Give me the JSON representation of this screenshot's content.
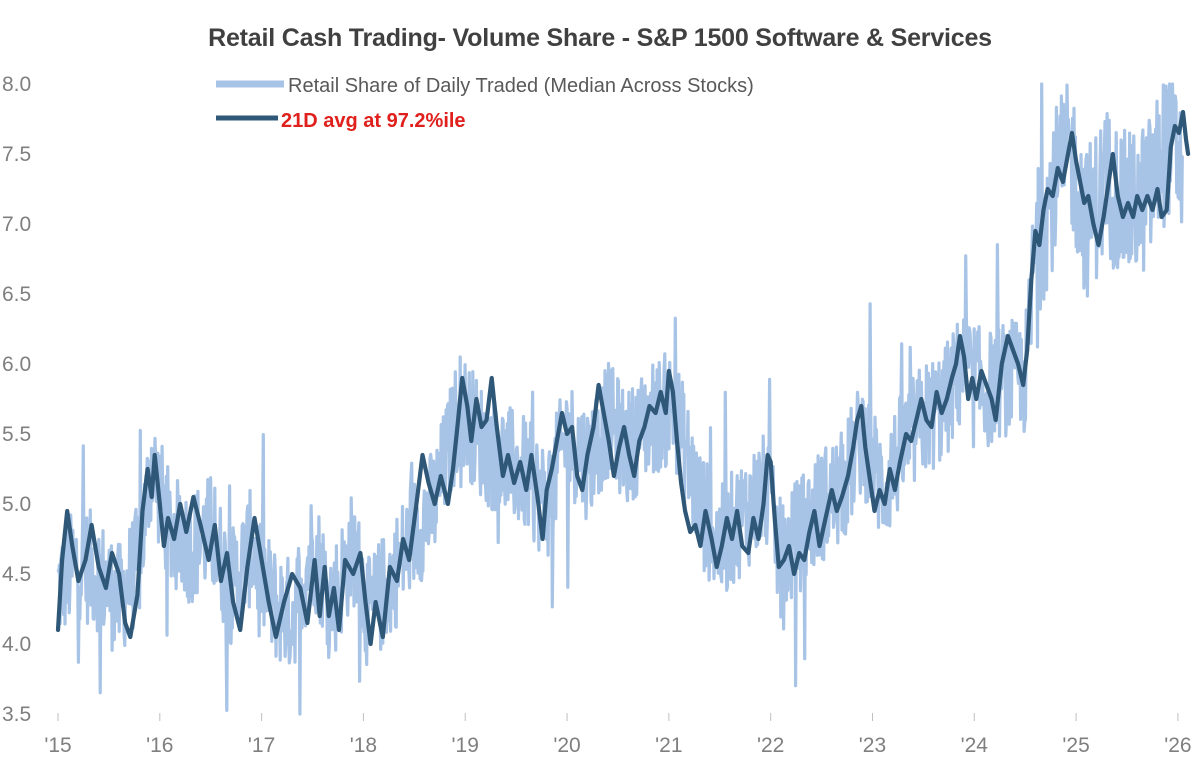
{
  "colors": {
    "daily": "#a7c3e6",
    "avg": "#2f5878",
    "annotation": "#e0201c",
    "axis_text": "#7f7f7f",
    "title": "#404040"
  },
  "chart_data": {
    "type": "line",
    "title": "Retail Cash Trading- Volume Share - S&P 1500 Software & Services",
    "xlabel": "",
    "ylabel": "",
    "x_range": [
      2015.0,
      2026.05
    ],
    "ylim": [
      3.5,
      8.0
    ],
    "y_ticks": [
      "3.5",
      "4.0",
      "4.5",
      "5.0",
      "5.5",
      "6.0",
      "6.5",
      "7.0",
      "7.5",
      "8.0"
    ],
    "x_ticks": [
      {
        "x": 2015,
        "label": "'15"
      },
      {
        "x": 2016,
        "label": "'16"
      },
      {
        "x": 2017,
        "label": "'17"
      },
      {
        "x": 2018,
        "label": "'18"
      },
      {
        "x": 2019,
        "label": "'19"
      },
      {
        "x": 2020,
        "label": "'20"
      },
      {
        "x": 2021,
        "label": "'21"
      },
      {
        "x": 2022,
        "label": "'22"
      },
      {
        "x": 2023,
        "label": "'23"
      },
      {
        "x": 2024,
        "label": "'24"
      },
      {
        "x": 2025,
        "label": "'25"
      },
      {
        "x": 2026,
        "label": "'26"
      }
    ],
    "grid": false,
    "legend_position": "top-left",
    "series": [
      {
        "name": "Retail Share of Daily Traded (Median Across Stocks)",
        "kind": "daily",
        "points": [
          [
            2015.0,
            4.4
          ],
          [
            2015.2,
            4.6
          ],
          [
            2015.4,
            4.5
          ],
          [
            2015.6,
            4.3
          ],
          [
            2015.8,
            4.6
          ],
          [
            2015.92,
            5.3
          ],
          [
            2016.1,
            4.8
          ],
          [
            2016.3,
            4.7
          ],
          [
            2016.5,
            4.8
          ],
          [
            2016.7,
            4.4
          ],
          [
            2016.9,
            4.7
          ],
          [
            2017.1,
            4.3
          ],
          [
            2017.3,
            4.2
          ],
          [
            2017.5,
            4.7
          ],
          [
            2017.7,
            4.3
          ],
          [
            2017.9,
            4.7
          ],
          [
            2018.05,
            4.2
          ],
          [
            2018.3,
            4.5
          ],
          [
            2018.5,
            4.8
          ],
          [
            2018.7,
            5.0
          ],
          [
            2018.95,
            5.7
          ],
          [
            2019.2,
            5.4
          ],
          [
            2019.4,
            5.3
          ],
          [
            2019.6,
            5.2
          ],
          [
            2019.8,
            5.0
          ],
          [
            2020.0,
            5.5
          ],
          [
            2020.2,
            5.3
          ],
          [
            2020.4,
            5.6
          ],
          [
            2020.6,
            5.4
          ],
          [
            2020.8,
            5.6
          ],
          [
            2021.05,
            5.7
          ],
          [
            2021.3,
            5.0
          ],
          [
            2021.5,
            4.7
          ],
          [
            2021.7,
            4.9
          ],
          [
            2021.95,
            5.1
          ],
          [
            2022.1,
            4.6
          ],
          [
            2022.3,
            4.8
          ],
          [
            2022.5,
            5.0
          ],
          [
            2022.7,
            5.1
          ],
          [
            2022.9,
            5.5
          ],
          [
            2023.1,
            5.1
          ],
          [
            2023.3,
            5.4
          ],
          [
            2023.5,
            5.6
          ],
          [
            2023.7,
            5.7
          ],
          [
            2023.9,
            6.0
          ],
          [
            2024.1,
            5.8
          ],
          [
            2024.3,
            5.9
          ],
          [
            2024.5,
            5.9
          ],
          [
            2024.6,
            6.8
          ],
          [
            2024.8,
            7.3
          ],
          [
            2024.95,
            7.5
          ],
          [
            2025.1,
            7.0
          ],
          [
            2025.3,
            7.3
          ],
          [
            2025.5,
            7.1
          ],
          [
            2025.7,
            7.2
          ],
          [
            2025.9,
            7.6
          ],
          [
            2026.05,
            7.4
          ]
        ]
      },
      {
        "name": "21D avg at 97.2%ile",
        "kind": "avg",
        "points": [
          [
            2015.0,
            4.1
          ],
          [
            2015.04,
            4.6
          ],
          [
            2015.09,
            4.95
          ],
          [
            2015.14,
            4.7
          ],
          [
            2015.2,
            4.45
          ],
          [
            2015.27,
            4.6
          ],
          [
            2015.33,
            4.85
          ],
          [
            2015.4,
            4.55
          ],
          [
            2015.47,
            4.4
          ],
          [
            2015.53,
            4.65
          ],
          [
            2015.6,
            4.5
          ],
          [
            2015.66,
            4.15
          ],
          [
            2015.71,
            4.05
          ],
          [
            2015.78,
            4.35
          ],
          [
            2015.83,
            4.95
          ],
          [
            2015.88,
            5.25
          ],
          [
            2015.92,
            5.05
          ],
          [
            2015.95,
            5.35
          ],
          [
            2016.0,
            5.0
          ],
          [
            2016.04,
            4.7
          ],
          [
            2016.08,
            4.9
          ],
          [
            2016.14,
            4.75
          ],
          [
            2016.2,
            5.0
          ],
          [
            2016.26,
            4.8
          ],
          [
            2016.33,
            5.05
          ],
          [
            2016.4,
            4.85
          ],
          [
            2016.48,
            4.6
          ],
          [
            2016.54,
            4.85
          ],
          [
            2016.6,
            4.45
          ],
          [
            2016.66,
            4.65
          ],
          [
            2016.72,
            4.3
          ],
          [
            2016.79,
            4.1
          ],
          [
            2016.86,
            4.55
          ],
          [
            2016.93,
            4.9
          ],
          [
            2017.0,
            4.6
          ],
          [
            2017.07,
            4.3
          ],
          [
            2017.14,
            4.05
          ],
          [
            2017.22,
            4.3
          ],
          [
            2017.3,
            4.5
          ],
          [
            2017.38,
            4.4
          ],
          [
            2017.45,
            4.15
          ],
          [
            2017.52,
            4.6
          ],
          [
            2017.57,
            4.2
          ],
          [
            2017.62,
            4.55
          ],
          [
            2017.66,
            4.2
          ],
          [
            2017.71,
            4.4
          ],
          [
            2017.76,
            4.1
          ],
          [
            2017.82,
            4.6
          ],
          [
            2017.9,
            4.5
          ],
          [
            2017.97,
            4.65
          ],
          [
            2018.02,
            4.3
          ],
          [
            2018.07,
            4.0
          ],
          [
            2018.12,
            4.3
          ],
          [
            2018.19,
            4.05
          ],
          [
            2018.26,
            4.55
          ],
          [
            2018.33,
            4.45
          ],
          [
            2018.39,
            4.75
          ],
          [
            2018.45,
            4.6
          ],
          [
            2018.52,
            5.0
          ],
          [
            2018.58,
            5.35
          ],
          [
            2018.64,
            5.15
          ],
          [
            2018.7,
            5.0
          ],
          [
            2018.76,
            5.2
          ],
          [
            2018.83,
            5.0
          ],
          [
            2018.88,
            5.25
          ],
          [
            2018.93,
            5.6
          ],
          [
            2018.97,
            5.9
          ],
          [
            2019.02,
            5.7
          ],
          [
            2019.06,
            5.45
          ],
          [
            2019.11,
            5.75
          ],
          [
            2019.16,
            5.55
          ],
          [
            2019.21,
            5.6
          ],
          [
            2019.26,
            5.9
          ],
          [
            2019.31,
            5.55
          ],
          [
            2019.37,
            5.2
          ],
          [
            2019.42,
            5.35
          ],
          [
            2019.48,
            5.15
          ],
          [
            2019.54,
            5.3
          ],
          [
            2019.6,
            5.1
          ],
          [
            2019.65,
            5.35
          ],
          [
            2019.71,
            5.05
          ],
          [
            2019.76,
            4.75
          ],
          [
            2019.8,
            5.1
          ],
          [
            2019.85,
            5.25
          ],
          [
            2019.9,
            5.45
          ],
          [
            2019.95,
            5.65
          ],
          [
            2020.0,
            5.5
          ],
          [
            2020.05,
            5.55
          ],
          [
            2020.1,
            5.2
          ],
          [
            2020.15,
            5.1
          ],
          [
            2020.2,
            5.35
          ],
          [
            2020.26,
            5.55
          ],
          [
            2020.31,
            5.85
          ],
          [
            2020.36,
            5.65
          ],
          [
            2020.41,
            5.45
          ],
          [
            2020.46,
            5.2
          ],
          [
            2020.51,
            5.4
          ],
          [
            2020.56,
            5.55
          ],
          [
            2020.61,
            5.35
          ],
          [
            2020.66,
            5.2
          ],
          [
            2020.71,
            5.45
          ],
          [
            2020.76,
            5.55
          ],
          [
            2020.81,
            5.7
          ],
          [
            2020.87,
            5.65
          ],
          [
            2020.92,
            5.8
          ],
          [
            2020.97,
            5.65
          ],
          [
            2021.0,
            5.95
          ],
          [
            2021.04,
            5.8
          ],
          [
            2021.08,
            5.45
          ],
          [
            2021.12,
            5.15
          ],
          [
            2021.16,
            4.95
          ],
          [
            2021.21,
            4.8
          ],
          [
            2021.26,
            4.85
          ],
          [
            2021.31,
            4.7
          ],
          [
            2021.36,
            4.95
          ],
          [
            2021.42,
            4.75
          ],
          [
            2021.47,
            4.55
          ],
          [
            2021.52,
            4.7
          ],
          [
            2021.57,
            4.9
          ],
          [
            2021.62,
            4.75
          ],
          [
            2021.67,
            4.95
          ],
          [
            2021.72,
            4.7
          ],
          [
            2021.78,
            4.65
          ],
          [
            2021.83,
            4.9
          ],
          [
            2021.88,
            4.75
          ],
          [
            2021.93,
            5.0
          ],
          [
            2021.97,
            5.35
          ],
          [
            2022.0,
            5.3
          ],
          [
            2022.04,
            4.9
          ],
          [
            2022.08,
            4.55
          ],
          [
            2022.13,
            4.6
          ],
          [
            2022.18,
            4.7
          ],
          [
            2022.23,
            4.5
          ],
          [
            2022.28,
            4.65
          ],
          [
            2022.33,
            4.6
          ],
          [
            2022.38,
            4.8
          ],
          [
            2022.43,
            4.95
          ],
          [
            2022.48,
            4.7
          ],
          [
            2022.54,
            4.9
          ],
          [
            2022.6,
            5.1
          ],
          [
            2022.65,
            4.95
          ],
          [
            2022.7,
            5.05
          ],
          [
            2022.76,
            5.2
          ],
          [
            2022.81,
            5.4
          ],
          [
            2022.85,
            5.6
          ],
          [
            2022.89,
            5.7
          ],
          [
            2022.93,
            5.4
          ],
          [
            2022.97,
            5.2
          ],
          [
            2023.02,
            4.95
          ],
          [
            2023.07,
            5.1
          ],
          [
            2023.12,
            5.0
          ],
          [
            2023.17,
            5.25
          ],
          [
            2023.22,
            5.1
          ],
          [
            2023.27,
            5.3
          ],
          [
            2023.33,
            5.5
          ],
          [
            2023.38,
            5.45
          ],
          [
            2023.43,
            5.6
          ],
          [
            2023.48,
            5.75
          ],
          [
            2023.53,
            5.6
          ],
          [
            2023.58,
            5.55
          ],
          [
            2023.63,
            5.8
          ],
          [
            2023.68,
            5.65
          ],
          [
            2023.73,
            5.75
          ],
          [
            2023.78,
            5.9
          ],
          [
            2023.82,
            6.0
          ],
          [
            2023.86,
            6.2
          ],
          [
            2023.9,
            6.05
          ],
          [
            2023.94,
            5.75
          ],
          [
            2023.98,
            5.9
          ],
          [
            2024.02,
            5.75
          ],
          [
            2024.07,
            5.95
          ],
          [
            2024.12,
            5.85
          ],
          [
            2024.17,
            5.75
          ],
          [
            2024.21,
            5.6
          ],
          [
            2024.27,
            6.0
          ],
          [
            2024.33,
            6.2
          ],
          [
            2024.38,
            6.1
          ],
          [
            2024.43,
            6.0
          ],
          [
            2024.48,
            5.85
          ],
          [
            2024.52,
            6.1
          ],
          [
            2024.56,
            6.6
          ],
          [
            2024.6,
            6.95
          ],
          [
            2024.64,
            6.85
          ],
          [
            2024.68,
            7.1
          ],
          [
            2024.72,
            7.25
          ],
          [
            2024.77,
            7.2
          ],
          [
            2024.82,
            7.4
          ],
          [
            2024.87,
            7.3
          ],
          [
            2024.92,
            7.5
          ],
          [
            2024.96,
            7.65
          ],
          [
            2025.0,
            7.45
          ],
          [
            2025.04,
            7.3
          ],
          [
            2025.08,
            7.15
          ],
          [
            2025.12,
            7.2
          ],
          [
            2025.17,
            7.0
          ],
          [
            2025.22,
            6.85
          ],
          [
            2025.27,
            7.05
          ],
          [
            2025.32,
            7.3
          ],
          [
            2025.36,
            7.5
          ],
          [
            2025.41,
            7.2
          ],
          [
            2025.46,
            7.05
          ],
          [
            2025.51,
            7.15
          ],
          [
            2025.56,
            7.05
          ],
          [
            2025.6,
            7.2
          ],
          [
            2025.65,
            7.1
          ],
          [
            2025.7,
            7.2
          ],
          [
            2025.75,
            7.1
          ],
          [
            2025.8,
            7.25
          ],
          [
            2025.84,
            7.05
          ],
          [
            2025.89,
            7.1
          ],
          [
            2025.93,
            7.55
          ],
          [
            2025.97,
            7.7
          ],
          [
            2026.01,
            7.65
          ],
          [
            2026.05,
            7.8
          ],
          [
            2026.08,
            7.6
          ],
          [
            2026.1,
            7.5
          ]
        ]
      }
    ]
  }
}
